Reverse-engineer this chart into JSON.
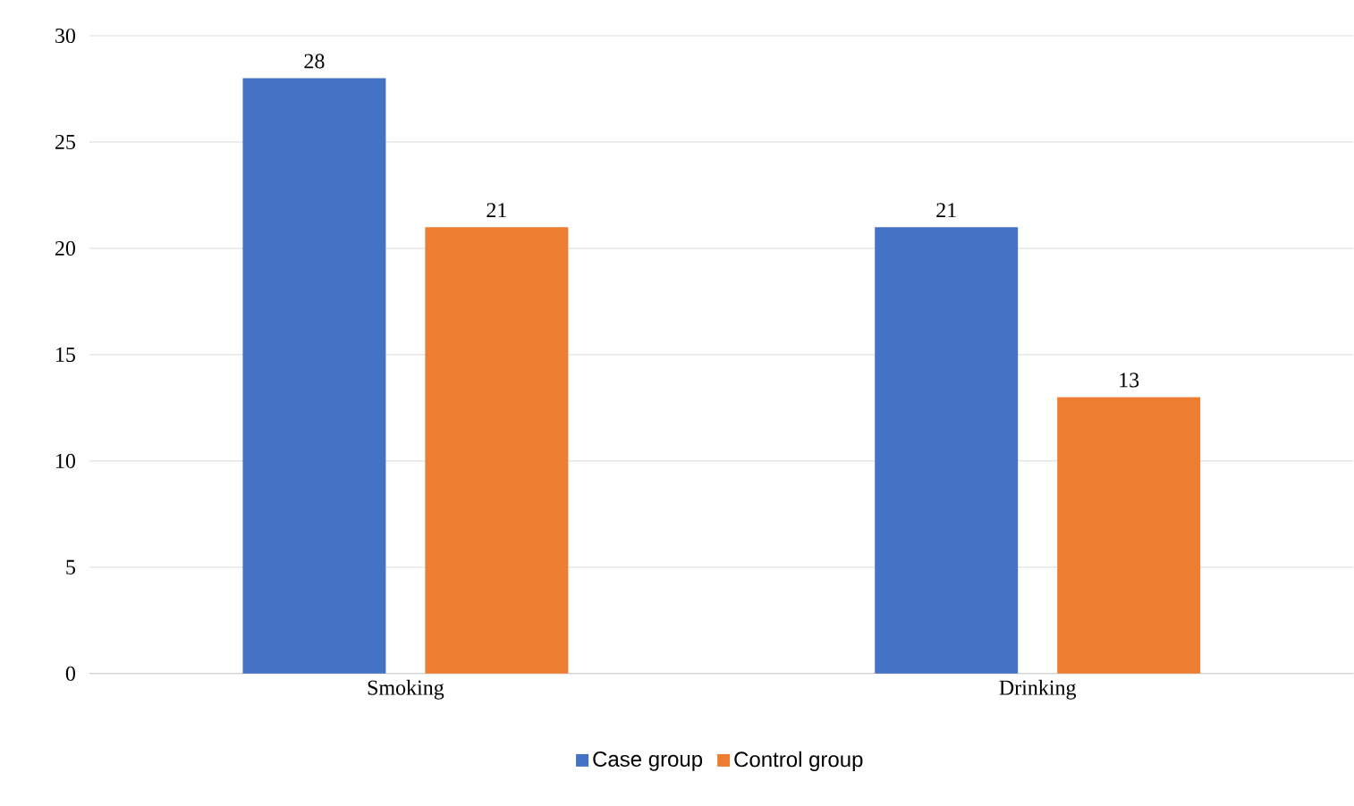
{
  "chart_data": {
    "type": "bar",
    "categories": [
      "Smoking",
      "Drinking"
    ],
    "series": [
      {
        "name": "Case group",
        "color": "#4472c4",
        "values": [
          28,
          21
        ]
      },
      {
        "name": "Control group",
        "color": "#ed7d31",
        "values": [
          21,
          13
        ]
      }
    ],
    "ylim": [
      0,
      30
    ],
    "yticks": [
      0,
      5,
      10,
      15,
      20,
      25,
      30
    ],
    "grid": "y",
    "legend": "bottom",
    "data_labels": true
  }
}
